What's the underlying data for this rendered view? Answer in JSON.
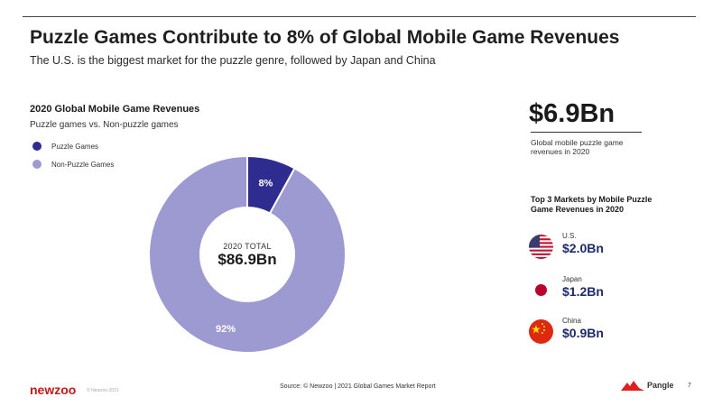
{
  "header": {
    "title": "Puzzle Games Contribute to 8% of Global Mobile Game Revenues",
    "subtitle": "The U.S. is the biggest market for the puzzle genre, followed by Japan and China"
  },
  "chart_data": {
    "type": "pie",
    "title": "2020 Global Mobile Game Revenues",
    "subtitle": "Puzzle games vs. Non-puzzle games",
    "series": [
      {
        "name": "Puzzle Games",
        "value": 8,
        "label": "8%",
        "color": "#2e2d8f"
      },
      {
        "name": "Non-Puzzle Games",
        "value": 92,
        "label": "92%",
        "color": "#9d9ad1"
      }
    ],
    "center": {
      "label": "2020 TOTAL",
      "value": "$86.9Bn"
    },
    "legend_position": "top-left"
  },
  "kpi": {
    "value": "$6.9Bn",
    "description": "Global mobile puzzle game revenues in 2020"
  },
  "markets": {
    "title": "Top 3 Markets by Mobile Puzzle Game Revenues in 2020",
    "items": [
      {
        "name": "U.S.",
        "value": "$2.0Bn",
        "flag": "us-flag-icon"
      },
      {
        "name": "Japan",
        "value": "$1.2Bn",
        "flag": "japan-flag-icon"
      },
      {
        "name": "China",
        "value": "$0.9Bn",
        "flag": "china-flag-icon"
      }
    ]
  },
  "footer": {
    "logo": "newzoo",
    "copyright": "© Newzoo 2021",
    "source": "Source: © Newzoo | 2021 Global Games Market Report",
    "partner": "Pangle",
    "page": "7"
  },
  "colors": {
    "accent": "#1d2a6b",
    "newzoo_red": "#c41a1a",
    "pangle_red": "#e0201c"
  }
}
